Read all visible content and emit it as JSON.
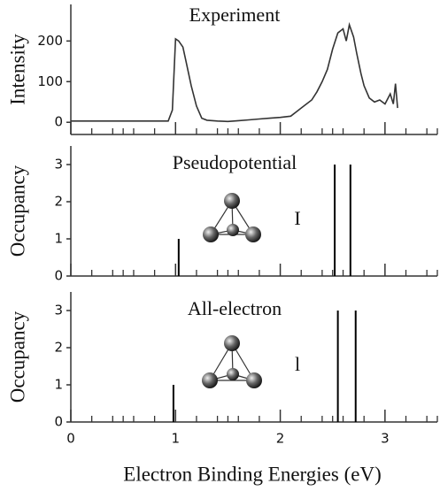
{
  "chart_data": [
    {
      "type": "line",
      "title": "Experiment",
      "ylabel": "Intensity",
      "color": "#333333",
      "x": [
        0,
        0.5,
        0.93,
        0.97,
        1.0,
        1.03,
        1.07,
        1.1,
        1.15,
        1.2,
        1.25,
        1.3,
        1.4,
        1.5,
        1.6,
        1.7,
        1.8,
        1.9,
        2.0,
        2.1,
        2.15,
        2.2,
        2.3,
        2.35,
        2.4,
        2.45,
        2.5,
        2.55,
        2.6,
        2.63,
        2.66,
        2.7,
        2.73,
        2.77,
        2.8,
        2.85,
        2.9,
        2.95,
        3.0,
        3.05,
        3.08,
        3.1,
        3.12
      ],
      "values": [
        3,
        3,
        3,
        30,
        205,
        200,
        185,
        150,
        90,
        40,
        10,
        5,
        3,
        2,
        4,
        6,
        8,
        10,
        12,
        15,
        25,
        35,
        55,
        75,
        100,
        130,
        180,
        220,
        230,
        200,
        240,
        210,
        170,
        120,
        90,
        60,
        50,
        55,
        45,
        70,
        45,
        95,
        35
      ],
      "xlim": [
        0,
        3.5
      ],
      "xticks": [
        0,
        1,
        2,
        3
      ],
      "xminorticks": [
        0.2,
        0.4,
        0.5,
        0.6,
        0.8,
        1.2,
        1.4,
        1.5,
        1.6,
        1.8,
        2.2,
        2.4,
        2.5,
        2.6,
        2.8,
        3.2,
        3.4,
        3.5
      ],
      "ylim": [
        -30,
        290
      ],
      "yticks": [
        0,
        100,
        200
      ]
    },
    {
      "type": "stick",
      "title": "Pseudopotential",
      "ylabel": "Occupancy",
      "annotation": "I",
      "color": "#000000",
      "x": [
        1.03,
        2.52,
        2.67
      ],
      "values": [
        1,
        3,
        3
      ],
      "xlim": [
        0,
        3.5
      ],
      "xticks": [
        0,
        1,
        2,
        3
      ],
      "xminorticks": [
        0.2,
        0.4,
        0.5,
        0.6,
        0.8,
        1.2,
        1.4,
        1.5,
        1.6,
        1.8,
        2.2,
        2.4,
        2.5,
        2.6,
        2.8,
        3.2,
        3.4,
        3.5
      ],
      "ylim": [
        0,
        3.5
      ],
      "yticks": [
        0,
        1,
        2,
        3
      ]
    },
    {
      "type": "stick",
      "title": "All-electron",
      "ylabel": "Occupancy",
      "annotation": "l",
      "color": "#000000",
      "x": [
        0.98,
        2.55,
        2.72
      ],
      "values": [
        1,
        3,
        3
      ],
      "xlim": [
        0,
        3.5
      ],
      "xticks": [
        0,
        1,
        2,
        3
      ],
      "xminorticks": [
        0.2,
        0.4,
        0.5,
        0.6,
        0.8,
        1.2,
        1.4,
        1.5,
        1.6,
        1.8,
        2.2,
        2.4,
        2.5,
        2.6,
        2.8,
        3.2,
        3.4,
        3.5
      ],
      "ylim": [
        0,
        3.5
      ],
      "yticks": [
        0,
        1,
        2,
        3
      ],
      "xlabel": "Electron Binding Energies (eV)"
    }
  ]
}
